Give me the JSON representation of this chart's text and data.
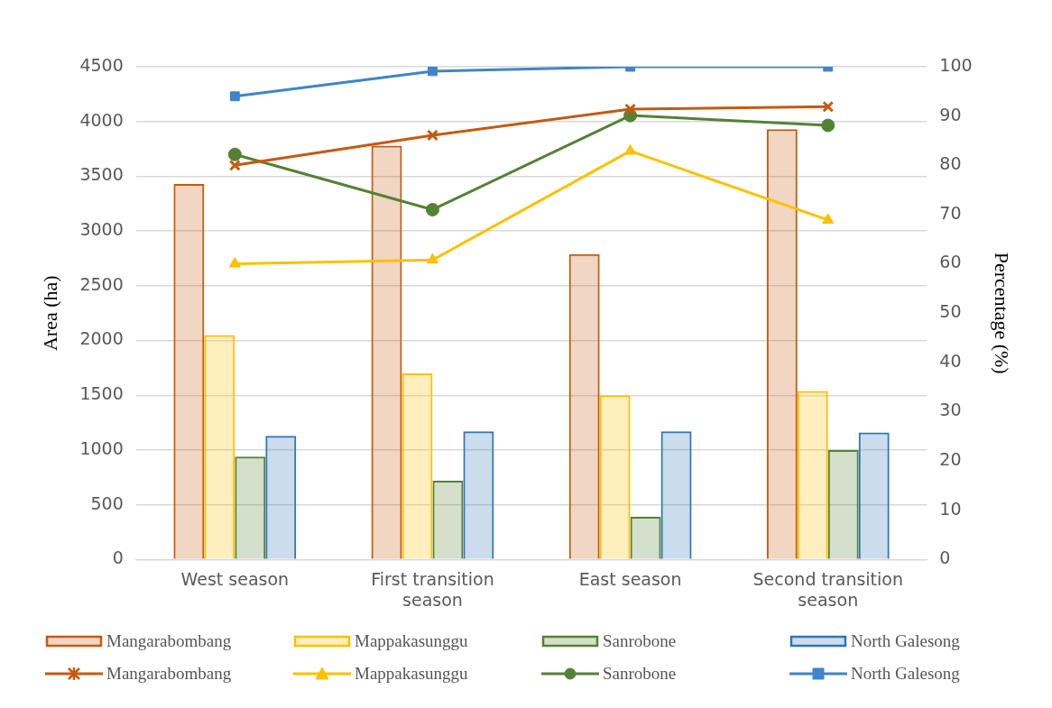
{
  "chart_data": {
    "type": "bar",
    "categories": [
      "West season",
      "First transition season",
      "East season",
      "Second transition season"
    ],
    "ylabel": "Area (ha)",
    "y2label": "Percentage (%)",
    "ylim": [
      0,
      4500
    ],
    "yticks": [
      0,
      500,
      1000,
      1500,
      2000,
      2500,
      3000,
      3500,
      4000,
      4500
    ],
    "y2lim": [
      0,
      100
    ],
    "y2ticks": [
      0,
      10,
      20,
      30,
      40,
      50,
      60,
      70,
      80,
      90,
      100
    ],
    "grid": "y",
    "legend": "bottom",
    "series": [
      {
        "name": "Mangarabombang",
        "color": "#c55a11",
        "values": [
          3430,
          3780,
          2790,
          3930
        ]
      },
      {
        "name": "Mappakasunggu",
        "color": "#ffc000",
        "values": [
          2050,
          1700,
          1500,
          1540
        ]
      },
      {
        "name": "Sanrobone",
        "color": "#548235",
        "values": [
          940,
          720,
          390,
          1000
        ]
      },
      {
        "name": "North Galesong",
        "color": "#2e75b6",
        "values": [
          1130,
          1170,
          1170,
          1160
        ]
      },
      {
        "name": "Mangarabombang",
        "type": "line",
        "axis": "y2",
        "marker": "cross",
        "color": "#c55a11",
        "values": [
          80.0,
          86.1,
          91.4,
          91.9
        ]
      },
      {
        "name": "Mappakasunggu",
        "type": "line",
        "axis": "y2",
        "marker": "triangle",
        "color": "#ffc000",
        "values": [
          60.0,
          60.8,
          82.9,
          68.9
        ]
      },
      {
        "name": "Sanrobone",
        "type": "line",
        "axis": "y2",
        "marker": "circle",
        "color": "#548235",
        "values": [
          82.2,
          71.0,
          90.1,
          88.1
        ]
      },
      {
        "name": "North Galesong",
        "type": "line",
        "axis": "y2",
        "marker": "square",
        "color": "#3f85c8",
        "values": [
          94.0,
          99.1,
          100,
          100
        ]
      }
    ]
  }
}
